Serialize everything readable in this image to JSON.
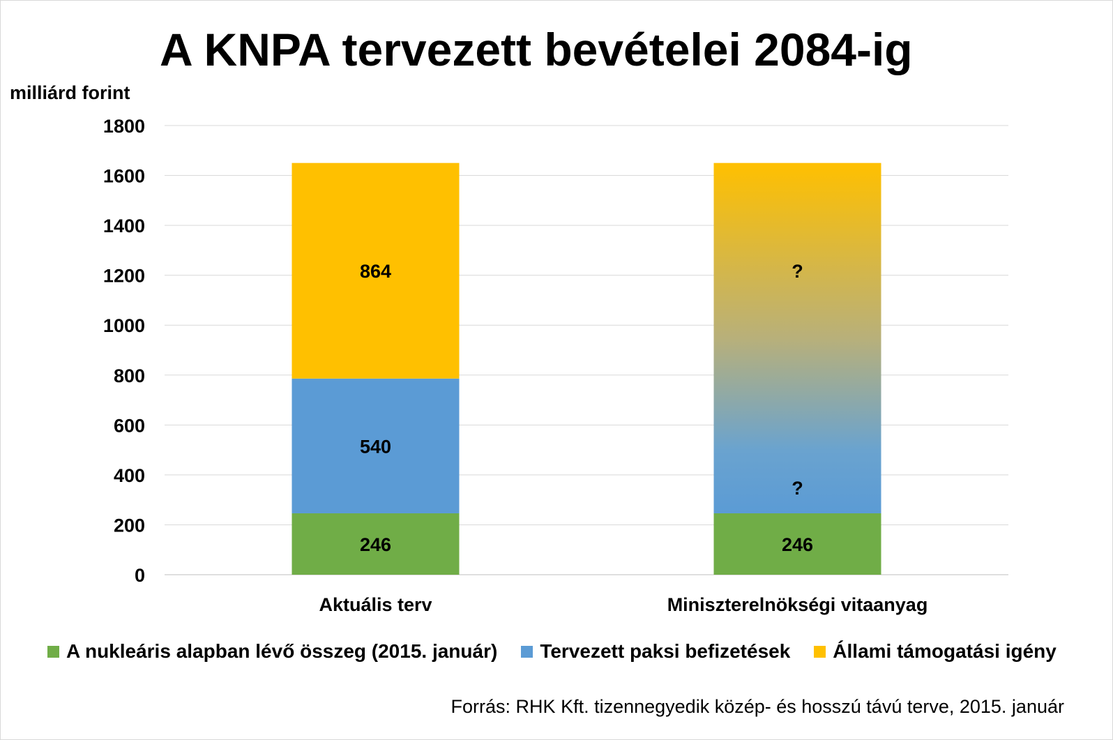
{
  "chart_data": {
    "type": "bar",
    "stacked": true,
    "title": "A KNPA tervezett bevételei 2084-ig",
    "ylabel": "milliárd forint",
    "ylim": [
      0,
      1800
    ],
    "yticks": [
      0,
      200,
      400,
      600,
      800,
      1000,
      1200,
      1400,
      1600,
      1800
    ],
    "grid": true,
    "legend_position": "bottom",
    "categories": [
      "Aktuális terv",
      "Miniszterelnökségi vitaanyag"
    ],
    "series": [
      {
        "name": "A nukleáris alapban lévő összeg (2015. január)",
        "color": "#70ad47",
        "values": [
          246,
          246
        ],
        "labels": [
          "246",
          "246"
        ]
      },
      {
        "name": "Tervezett paksi befizetések",
        "color": "#5b9bd5",
        "values": [
          540,
          null
        ],
        "labels": [
          "540",
          "?"
        ]
      },
      {
        "name": "Állami támogatási igény",
        "color": "#ffc000",
        "values": [
          864,
          null
        ],
        "labels": [
          "864",
          "?"
        ]
      }
    ],
    "unknown_total": 1650,
    "source": "Forrás: RHK Kft. tizennegyedik közép- és hosszú távú terve, 2015. január"
  }
}
